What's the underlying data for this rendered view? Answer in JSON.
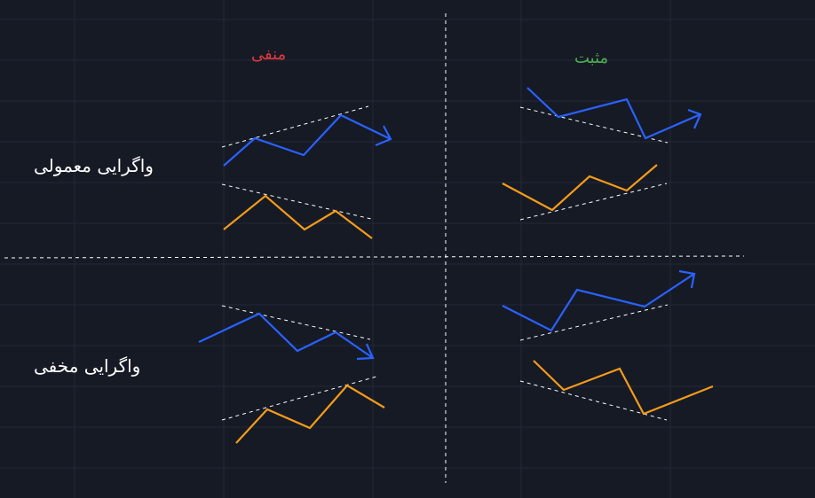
{
  "columns": {
    "negative": "منفی",
    "positive": "مثبت"
  },
  "rows": {
    "regular": "واگرایی معمولی",
    "hidden": "واگرایی مخفی"
  },
  "colors": {
    "background": "#161a25",
    "grid": "#232838",
    "price_line": "#2962ff",
    "indicator_line": "#f59b1a",
    "dashed_line": "#ffffff",
    "negative_text": "#e0393e",
    "positive_text": "#4caf50"
  }
}
